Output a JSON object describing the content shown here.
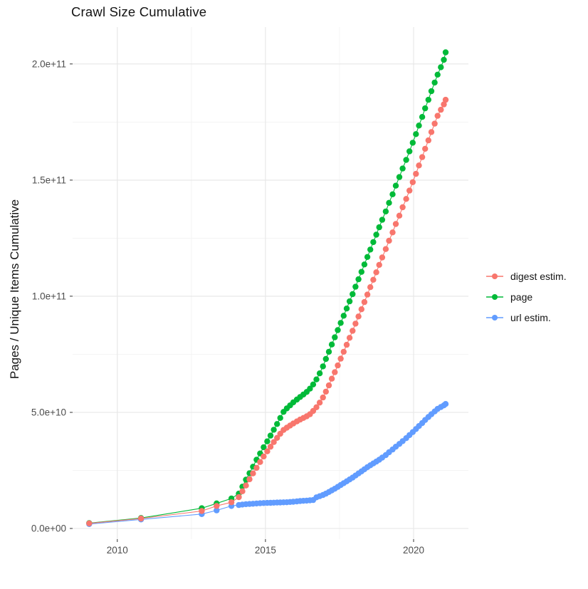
{
  "chart_data": {
    "type": "line-scatter",
    "title": "Crawl Size Cumulative",
    "ylabel": "Pages / Unique Items Cumulative",
    "xlabel": "",
    "value_unit": "billions (1e9)",
    "grid": true,
    "legend_position": "right",
    "xlim": [
      2008.49,
      2021.85
    ],
    "ylim_e9": [
      -4.6,
      215.9
    ],
    "x_ticks": [
      {
        "label": "2010",
        "year": 2010
      },
      {
        "label": "2015",
        "year": 2015
      },
      {
        "label": "2020",
        "year": 2020
      }
    ],
    "x_minor_years": [
      2012.5,
      2017.5
    ],
    "y_ticks": [
      {
        "label": "0.0e+00",
        "value_e9": 0
      },
      {
        "label": "5.0e+10",
        "value_e9": 50
      },
      {
        "label": "1.0e+11",
        "value_e9": 100
      },
      {
        "label": "1.5e+11",
        "value_e9": 150
      },
      {
        "label": "2.0e+11",
        "value_e9": 200
      }
    ],
    "y_minor_e9": [
      25,
      75,
      125,
      175
    ],
    "x_years": [
      2009.05,
      2010.8,
      2012.85,
      2013.35,
      2013.85,
      2014.1,
      2014.22,
      2014.34,
      2014.46,
      2014.58,
      2014.7,
      2014.82,
      2014.94,
      2015.06,
      2015.17,
      2015.28,
      2015.39,
      2015.5,
      2015.61,
      2015.72,
      2015.83,
      2015.94,
      2016.06,
      2016.17,
      2016.28,
      2016.39,
      2016.5,
      2016.61,
      2016.72,
      2016.83,
      2016.94,
      2017.04,
      2017.14,
      2017.24,
      2017.34,
      2017.44,
      2017.54,
      2017.64,
      2017.74,
      2017.84,
      2017.94,
      2018.04,
      2018.14,
      2018.24,
      2018.34,
      2018.44,
      2018.54,
      2018.64,
      2018.74,
      2018.84,
      2018.94,
      2019.06,
      2019.17,
      2019.29,
      2019.4,
      2019.52,
      2019.63,
      2019.75,
      2019.86,
      2019.97,
      2020.08,
      2020.18,
      2020.29,
      2020.39,
      2020.5,
      2020.6,
      2020.71,
      2020.81,
      2020.92,
      2021.02,
      2021.08
    ],
    "series": [
      {
        "name": "digest estim.",
        "color": "#F8766D",
        "values_e9": [
          2.2,
          4.3,
          7.5,
          9.7,
          11.3,
          13.5,
          16.0,
          18.5,
          21.2,
          23.7,
          26.1,
          28.6,
          31.0,
          33.2,
          35.2,
          37.2,
          39.0,
          40.8,
          42.4,
          43.4,
          44.3,
          45.2,
          46.1,
          46.9,
          47.6,
          48.3,
          49.2,
          50.6,
          52.2,
          54.2,
          56.4,
          58.9,
          61.6,
          64.5,
          67.3,
          70.2,
          73.1,
          76.1,
          79.1,
          82.1,
          85.1,
          88.2,
          91.3,
          94.4,
          97.5,
          100.7,
          103.9,
          107.1,
          110.3,
          113.5,
          116.7,
          120.3,
          123.9,
          127.5,
          131.1,
          134.7,
          138.3,
          141.9,
          145.5,
          149.1,
          152.7,
          156.3,
          159.9,
          163.5,
          167.1,
          170.7,
          174.3,
          177.7,
          180.3,
          182.6,
          184.6
        ]
      },
      {
        "name": "page",
        "color": "#00BA38",
        "values_e9": [
          2.3,
          4.5,
          8.7,
          10.8,
          12.9,
          15.0,
          18.0,
          21.0,
          23.8,
          26.6,
          29.6,
          32.3,
          35.0,
          37.5,
          40.0,
          42.5,
          45.0,
          47.6,
          50.2,
          51.7,
          53.0,
          54.3,
          55.5,
          56.6,
          57.7,
          58.8,
          60.2,
          62.0,
          64.2,
          66.8,
          69.8,
          73.0,
          76.1,
          79.2,
          82.3,
          85.4,
          88.5,
          91.6,
          94.7,
          97.8,
          100.9,
          104.1,
          107.3,
          110.5,
          113.7,
          116.9,
          120.1,
          123.3,
          126.5,
          129.7,
          132.9,
          136.5,
          140.2,
          143.9,
          147.6,
          151.3,
          155.0,
          158.7,
          162.4,
          166.1,
          169.8,
          173.5,
          177.2,
          180.9,
          184.6,
          188.3,
          192.0,
          195.4,
          198.6,
          201.8,
          205.0
        ]
      },
      {
        "name": "url estim.",
        "color": "#619CFF",
        "values_e9": [
          1.9,
          3.9,
          6.2,
          7.8,
          9.7,
          10.1,
          10.3,
          10.45,
          10.55,
          10.65,
          10.75,
          10.85,
          10.95,
          11.0,
          11.05,
          11.1,
          11.15,
          11.2,
          11.25,
          11.3,
          11.4,
          11.5,
          11.65,
          11.8,
          11.9,
          12.0,
          12.1,
          12.25,
          13.4,
          13.9,
          14.4,
          15.0,
          15.7,
          16.4,
          17.1,
          17.9,
          18.7,
          19.5,
          20.3,
          21.1,
          21.9,
          22.8,
          23.7,
          24.6,
          25.5,
          26.4,
          27.2,
          28.0,
          28.8,
          29.6,
          30.5,
          31.6,
          32.8,
          34.0,
          35.2,
          36.4,
          37.6,
          38.9,
          40.2,
          41.5,
          42.8,
          44.1,
          45.4,
          46.7,
          48.0,
          49.2,
          50.4,
          51.5,
          52.3,
          53.0,
          53.6
        ]
      }
    ],
    "draw_order": [
      1,
      2,
      0
    ],
    "colors": {
      "grid_major": "#e6e6e6",
      "grid_minor": "#f3f3f3",
      "axis_tick": "#333333",
      "tick_label": "#4d4d4d",
      "text": "#141414",
      "background": "#ffffff"
    }
  }
}
